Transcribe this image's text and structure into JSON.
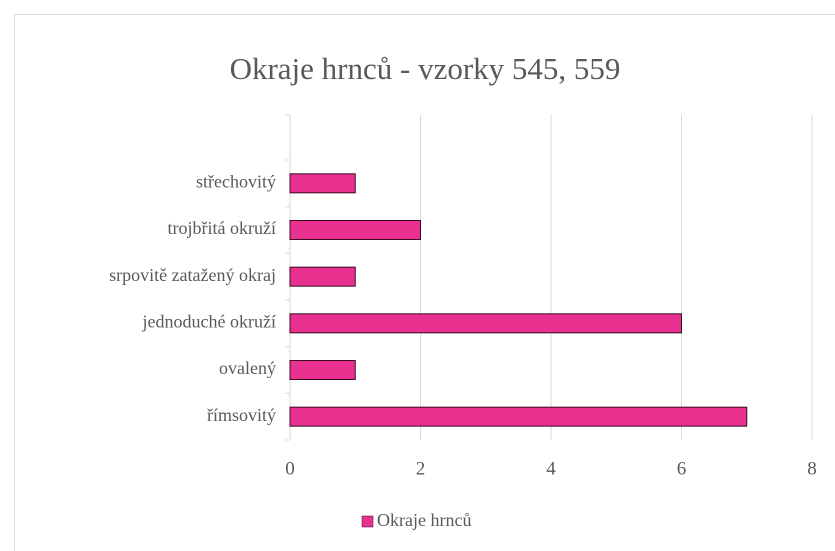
{
  "chart_data": {
    "type": "bar",
    "orientation": "horizontal",
    "title": "Okraje hrnců - vzorky 545, 559",
    "categories": [
      "střechovitý",
      "trojbřitá okruží",
      "srpovitě zatažený okraj",
      "jednoduché okruží",
      "ovalený",
      "římsovitý"
    ],
    "series": [
      {
        "name": "Okraje hrnců",
        "color": "#e8318f",
        "values": [
          1,
          2,
          1,
          6,
          1,
          7
        ]
      }
    ],
    "xlim": [
      0,
      8
    ],
    "xticks": [
      0,
      2,
      4,
      6,
      8
    ],
    "grid": true,
    "legend": "bottom"
  }
}
